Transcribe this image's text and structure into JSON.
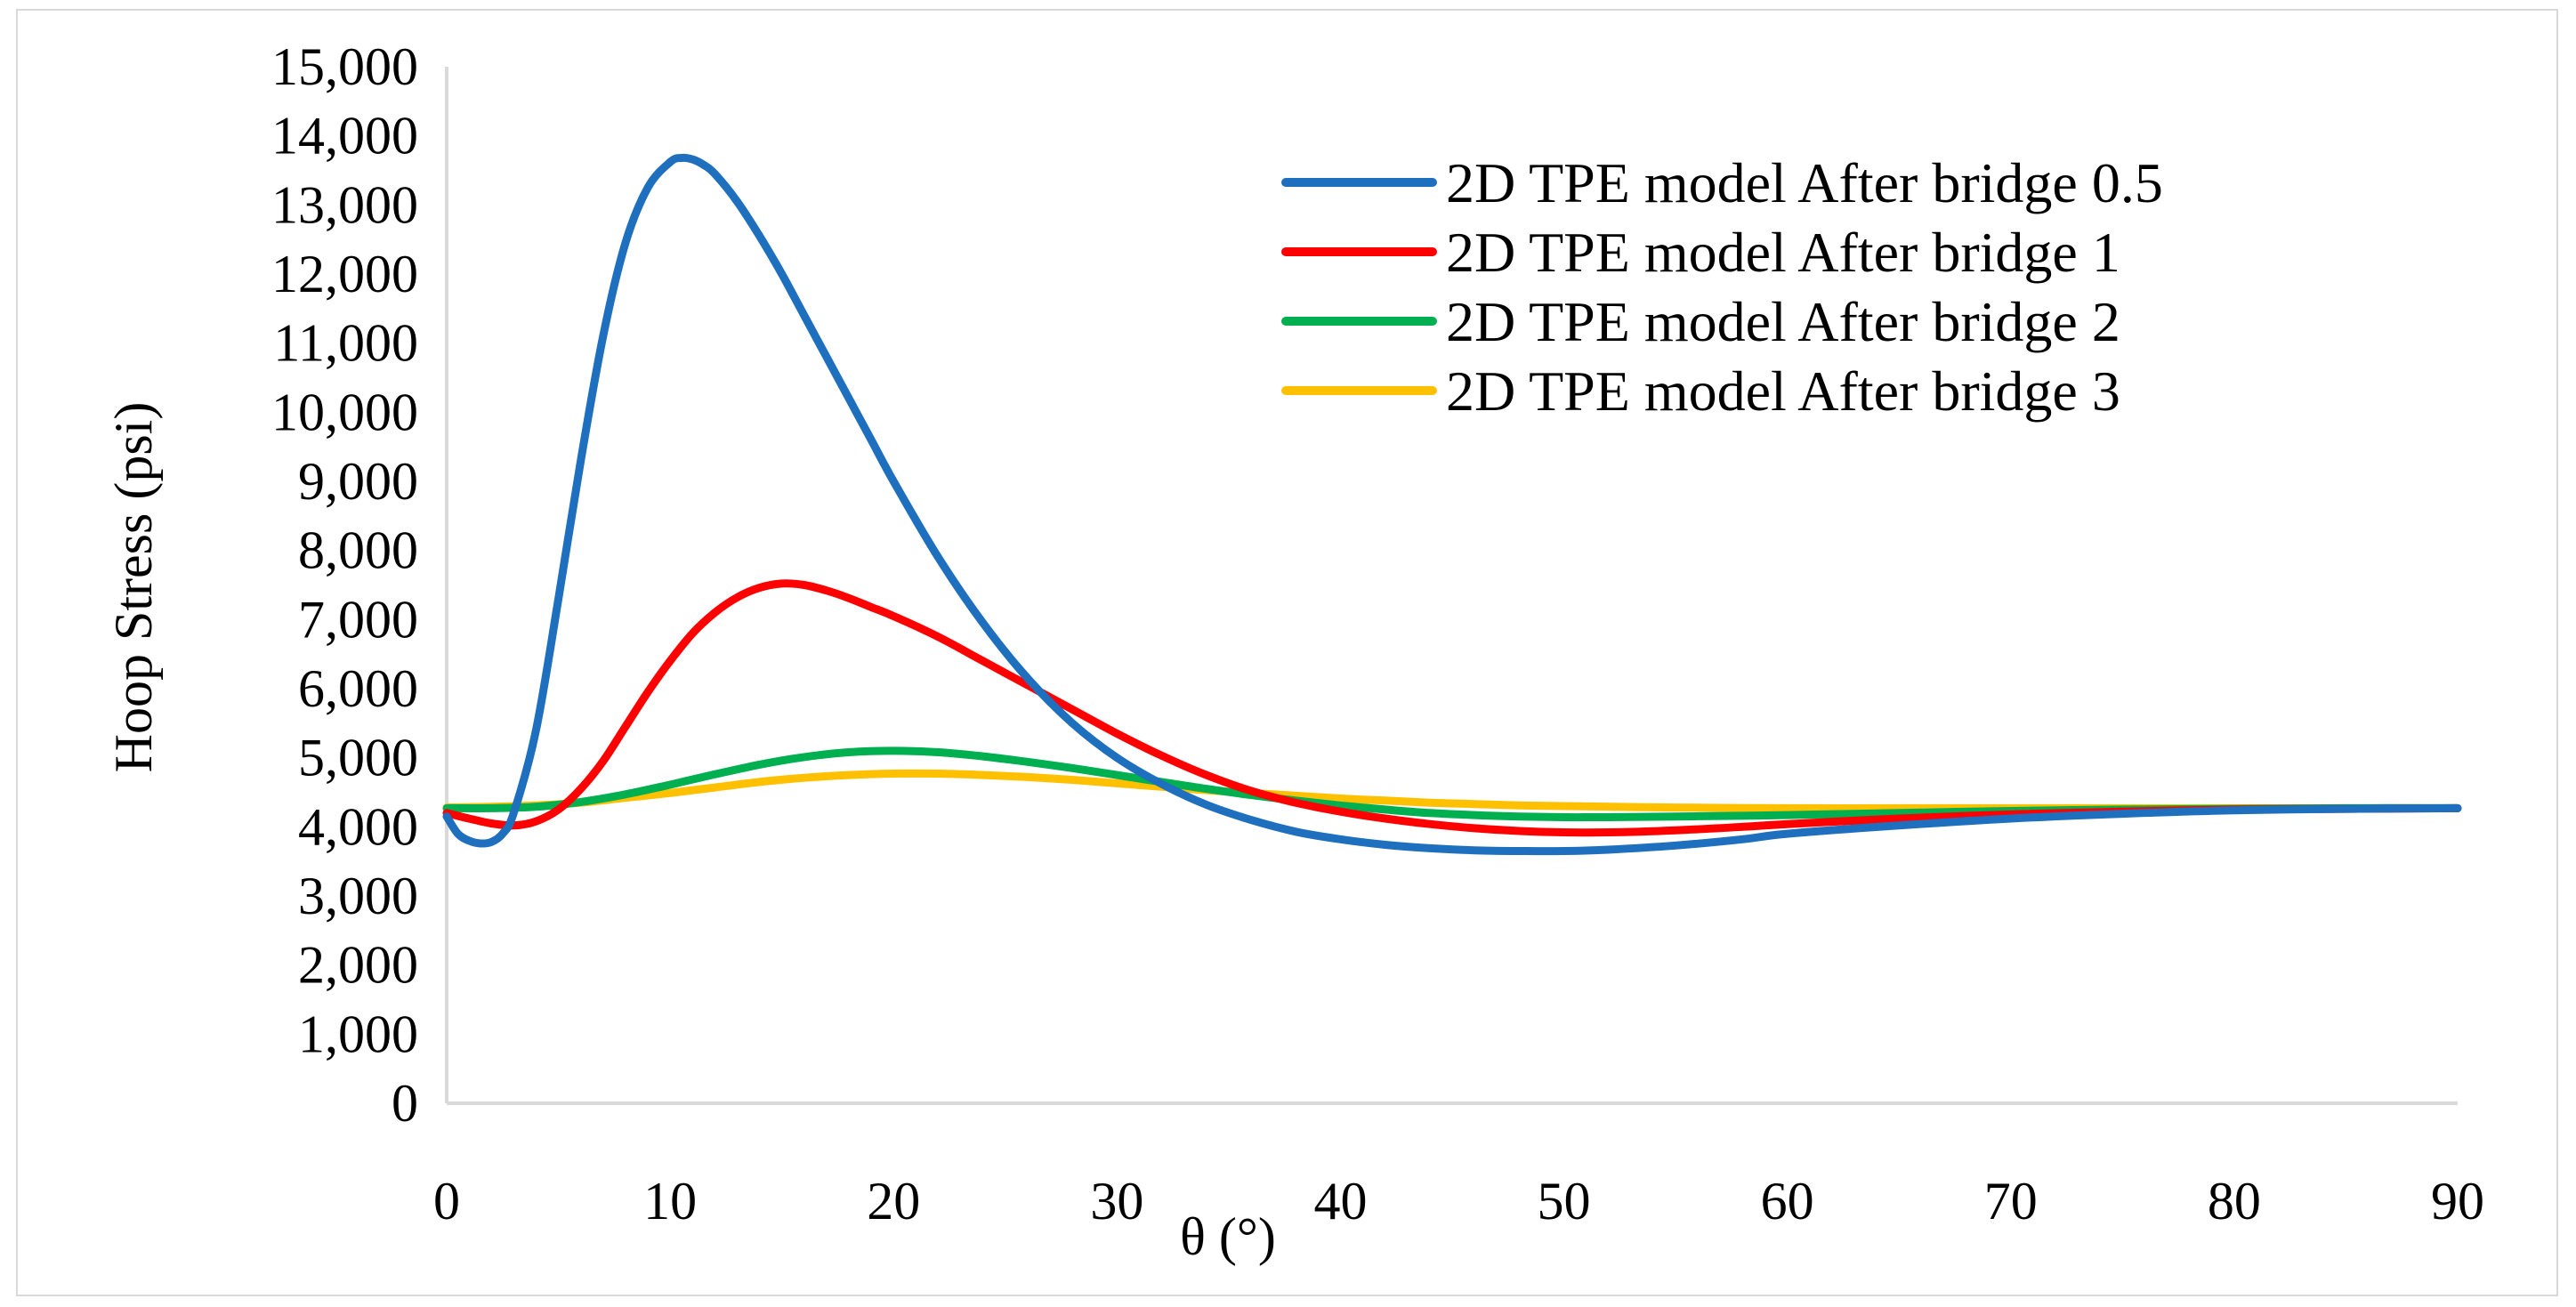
{
  "chart_data": {
    "type": "line",
    "title": "",
    "xlabel": "θ (°)",
    "ylabel": "Hoop Stress (psi)",
    "xlim": [
      0,
      90
    ],
    "ylim": [
      0,
      15000
    ],
    "x_ticks": [
      0,
      10,
      20,
      30,
      40,
      50,
      60,
      70,
      80,
      90
    ],
    "x_tick_labels": [
      "0",
      "10",
      "20",
      "30",
      "40",
      "50",
      "60",
      "70",
      "80",
      "90"
    ],
    "y_ticks": [
      0,
      1000,
      2000,
      3000,
      4000,
      5000,
      6000,
      7000,
      8000,
      9000,
      10000,
      11000,
      12000,
      13000,
      14000,
      15000
    ],
    "y_tick_labels": [
      "0",
      "1,000",
      "2,000",
      "3,000",
      "4,000",
      "5,000",
      "6,000",
      "7,000",
      "8,000",
      "9,000",
      "10,000",
      "11,000",
      "12,000",
      "13,000",
      "14,000",
      "15,000"
    ],
    "grid": false,
    "legend_position": "top-right",
    "series": [
      {
        "name": "2D TPE model After bridge 0.5",
        "color": "#1f6fbf",
        "x": [
          0,
          0.5,
          1,
          1.5,
          2,
          2.5,
          3,
          4,
          5,
          6,
          7,
          8,
          9,
          10,
          10.5,
          11,
          11.5,
          12,
          13,
          14,
          15,
          16,
          17,
          18,
          19,
          20,
          22,
          24,
          26,
          28,
          30,
          32,
          34,
          36,
          38,
          40,
          42,
          44,
          46,
          48,
          50,
          52,
          55,
          58,
          60,
          65,
          70,
          75,
          80,
          85,
          90
        ],
        "y": [
          4150,
          3900,
          3800,
          3760,
          3780,
          3900,
          4200,
          5400,
          7300,
          9300,
          11100,
          12450,
          13250,
          13620,
          13680,
          13660,
          13580,
          13450,
          13050,
          12550,
          12000,
          11400,
          10800,
          10200,
          9600,
          9000,
          7900,
          6950,
          6150,
          5500,
          5000,
          4620,
          4320,
          4100,
          3930,
          3820,
          3740,
          3690,
          3660,
          3650,
          3650,
          3670,
          3730,
          3820,
          3900,
          4020,
          4120,
          4190,
          4240,
          4260,
          4270
        ]
      },
      {
        "name": "2D TPE model After bridge 1",
        "color": "#ff0000",
        "x": [
          0,
          1,
          2,
          3,
          4,
          5,
          6,
          7,
          8,
          9,
          10,
          11,
          12,
          13,
          14,
          15,
          16,
          17,
          18,
          19,
          20,
          22,
          24,
          26,
          28,
          30,
          32,
          34,
          36,
          38,
          40,
          42,
          44,
          46,
          48,
          50,
          52,
          55,
          58,
          60,
          65,
          70,
          75,
          80,
          85,
          90
        ],
        "y": [
          4200,
          4120,
          4050,
          4020,
          4080,
          4250,
          4550,
          4950,
          5450,
          5950,
          6400,
          6800,
          7100,
          7320,
          7460,
          7520,
          7500,
          7420,
          7310,
          7180,
          7050,
          6750,
          6400,
          6050,
          5700,
          5350,
          5030,
          4750,
          4520,
          4350,
          4220,
          4120,
          4040,
          3980,
          3940,
          3920,
          3920,
          3950,
          4000,
          4040,
          4120,
          4180,
          4220,
          4250,
          4260,
          4270
        ]
      },
      {
        "name": "2D TPE model After bridge 2",
        "color": "#00b050",
        "x": [
          0,
          2,
          4,
          6,
          8,
          10,
          12,
          14,
          16,
          18,
          20,
          22,
          24,
          26,
          28,
          30,
          32,
          34,
          36,
          38,
          40,
          42,
          44,
          46,
          48,
          50,
          52,
          55,
          58,
          60,
          65,
          70,
          75,
          80,
          85,
          90
        ],
        "y": [
          4270,
          4270,
          4290,
          4360,
          4470,
          4610,
          4760,
          4900,
          5010,
          5080,
          5100,
          5080,
          5020,
          4940,
          4850,
          4750,
          4650,
          4550,
          4460,
          4380,
          4310,
          4250,
          4200,
          4170,
          4150,
          4140,
          4140,
          4150,
          4160,
          4170,
          4200,
          4230,
          4250,
          4260,
          4270,
          4270
        ]
      },
      {
        "name": "2D TPE model After bridge 3",
        "color": "#ffc000",
        "x": [
          0,
          2,
          4,
          6,
          8,
          10,
          12,
          14,
          16,
          18,
          20,
          22,
          24,
          26,
          28,
          30,
          32,
          34,
          36,
          38,
          40,
          42,
          44,
          46,
          48,
          50,
          55,
          60,
          65,
          70,
          75,
          80,
          85,
          90
        ],
        "y": [
          4280,
          4290,
          4310,
          4350,
          4420,
          4490,
          4570,
          4650,
          4710,
          4750,
          4770,
          4770,
          4750,
          4720,
          4680,
          4630,
          4580,
          4530,
          4490,
          4450,
          4410,
          4380,
          4350,
          4330,
          4310,
          4300,
          4280,
          4270,
          4270,
          4270,
          4270,
          4270,
          4270,
          4270
        ]
      }
    ]
  }
}
